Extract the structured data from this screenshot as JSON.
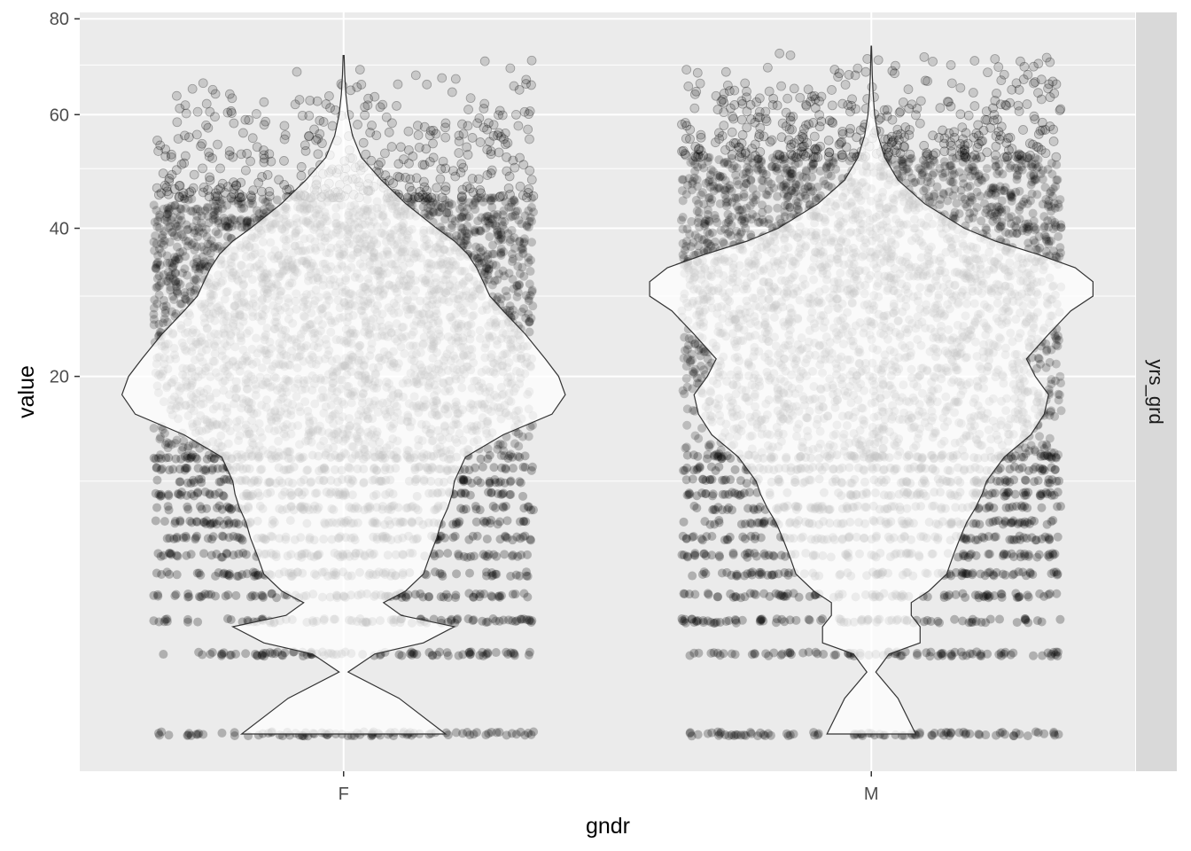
{
  "chart_data": {
    "type": "violin",
    "xlabel": "gndr",
    "ylabel": "value",
    "facet_label": "yrs_grd",
    "categories": [
      "F",
      "M"
    ],
    "y_scale": "sqrt",
    "ylim": [
      0,
      80
    ],
    "y_ticks": [
      20,
      40,
      60,
      80
    ],
    "y_minor_ticks": [
      10,
      30,
      50,
      70
    ],
    "grid": true,
    "point_color": "#000000",
    "violin_fill": "#ffffff",
    "violin_alpha": 0.75,
    "violin_outline": "#333333",
    "panel_background": "#ebebeb",
    "strip_background": "#d9d9d9",
    "jitter_points": [
      {
        "category": "F",
        "max_value": 72,
        "dense_top": 45,
        "levels": [
          0,
          1,
          2,
          3,
          4,
          5,
          6,
          7,
          8,
          9,
          10,
          11,
          12
        ]
      },
      {
        "category": "M",
        "max_value": 74,
        "dense_top": 52,
        "levels": [
          0,
          1,
          2,
          3,
          4,
          5,
          6,
          7,
          8,
          9,
          10,
          11,
          12
        ]
      }
    ],
    "violin_density": [
      {
        "category": "F",
        "y": [
          0,
          0.2,
          0.6,
          1,
          1.3,
          1.8,
          2.2,
          2.7,
          3.2,
          4,
          5,
          6,
          7,
          8,
          9,
          10,
          12,
          14,
          16,
          18,
          20,
          22,
          25,
          28,
          30,
          32,
          34,
          36,
          38,
          40,
          44,
          48,
          52,
          56,
          60,
          64,
          68,
          72
        ],
        "half_width": [
          0.46,
          0.25,
          0.02,
          0.14,
          0.36,
          0.5,
          0.26,
          0.18,
          0.28,
          0.36,
          0.39,
          0.42,
          0.44,
          0.47,
          0.49,
          0.5,
          0.55,
          0.72,
          0.94,
          1.0,
          0.97,
          0.91,
          0.82,
          0.72,
          0.66,
          0.63,
          0.6,
          0.56,
          0.5,
          0.42,
          0.28,
          0.17,
          0.08,
          0.04,
          0.02,
          0.01,
          0.005,
          0.002
        ]
      },
      {
        "category": "M",
        "y": [
          0,
          0.2,
          0.6,
          1,
          1.3,
          1.8,
          2.2,
          2.7,
          3.2,
          4,
          5,
          6,
          7,
          8,
          9,
          10,
          12,
          14,
          16,
          18,
          20,
          22,
          25,
          28,
          30,
          32,
          34,
          36,
          38,
          40,
          44,
          48,
          52,
          56,
          60,
          64,
          68,
          72,
          74
        ],
        "half_width": [
          0.2,
          0.12,
          0.02,
          0.08,
          0.22,
          0.22,
          0.18,
          0.18,
          0.26,
          0.34,
          0.37,
          0.4,
          0.43,
          0.47,
          0.5,
          0.52,
          0.6,
          0.72,
          0.78,
          0.8,
          0.74,
          0.7,
          0.8,
          0.9,
          1.0,
          1.0,
          0.92,
          0.75,
          0.56,
          0.42,
          0.24,
          0.12,
          0.06,
          0.03,
          0.015,
          0.008,
          0.004,
          0.002,
          0.001
        ]
      }
    ]
  }
}
